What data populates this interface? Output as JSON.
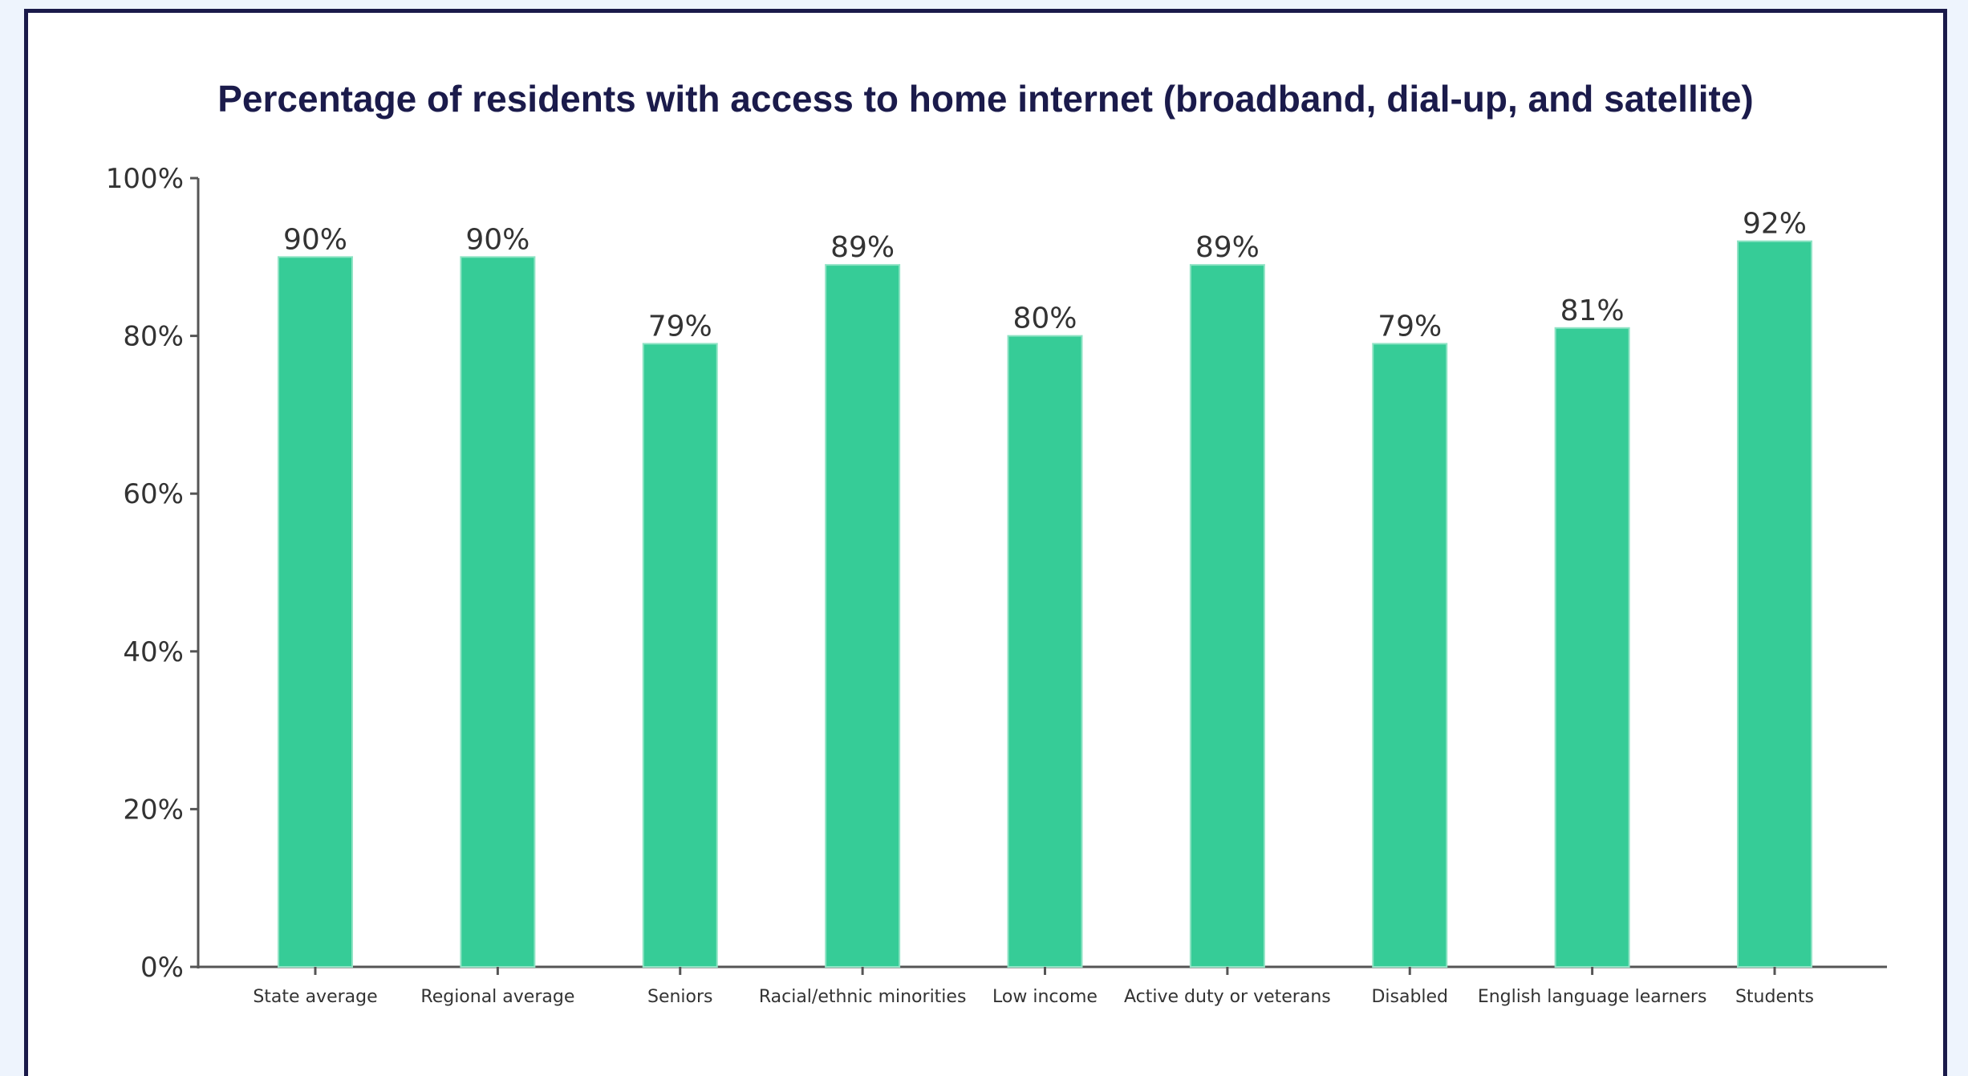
{
  "chart_data": {
    "type": "bar",
    "title": "Percentage of residents with access to home internet (broadband, dial-up, and satellite)",
    "xlabel": "",
    "ylabel": "",
    "categories": [
      "State average",
      "Regional average",
      "Seniors",
      "Racial/ethnic minorities",
      "Low income",
      "Active duty or veterans",
      "Disabled",
      "English language learners",
      "Students"
    ],
    "values": [
      90,
      90,
      79,
      89,
      80,
      89,
      79,
      81,
      92
    ],
    "data_labels": [
      "90%",
      "90%",
      "79%",
      "89%",
      "80%",
      "89%",
      "79%",
      "81%",
      "92%"
    ],
    "ylim": [
      0,
      100
    ],
    "yticks": [
      0,
      20,
      40,
      60,
      80,
      100
    ],
    "ytick_labels": [
      "0%",
      "20%",
      "40%",
      "60%",
      "80%",
      "100%"
    ],
    "grid": false,
    "bar_color": "#36cc97"
  }
}
